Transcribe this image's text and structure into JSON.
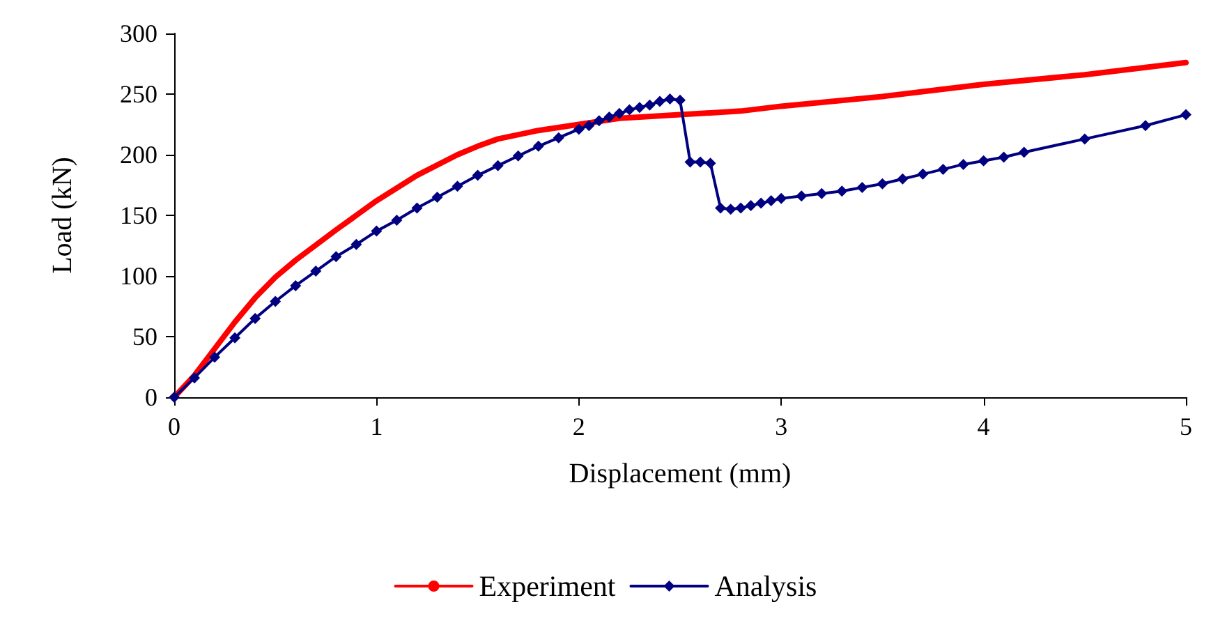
{
  "chart_data": {
    "type": "line",
    "xlabel": "Displacement (mm)",
    "ylabel": "Load (kN)",
    "xlim": [
      0,
      5
    ],
    "xticks": [
      0,
      1,
      2,
      3,
      4,
      5
    ],
    "ylim": [
      0,
      300
    ],
    "yticks": [
      0,
      50,
      100,
      150,
      200,
      250,
      300
    ],
    "grid": false,
    "legend": "bottom",
    "series": [
      {
        "name": "Experiment",
        "color": "#ff0000",
        "marker": "none",
        "x": [
          0,
          0.1,
          0.2,
          0.3,
          0.4,
          0.5,
          0.6,
          0.8,
          1.0,
          1.2,
          1.4,
          1.5,
          1.6,
          1.8,
          2.0,
          2.2,
          2.5,
          2.8,
          3.0,
          3.5,
          4.0,
          4.5,
          5.0
        ],
        "values": [
          0,
          18,
          40,
          62,
          82,
          99,
          113,
          138,
          162,
          183,
          200,
          207,
          213,
          220,
          225,
          230,
          233,
          236,
          240,
          248,
          258,
          266,
          276
        ]
      },
      {
        "name": "Analysis",
        "color": "#000080",
        "marker": "diamond",
        "x": [
          0,
          0.1,
          0.2,
          0.3,
          0.4,
          0.5,
          0.6,
          0.7,
          0.8,
          0.9,
          1.0,
          1.1,
          1.2,
          1.3,
          1.4,
          1.5,
          1.6,
          1.7,
          1.8,
          1.9,
          2.0,
          2.05,
          2.1,
          2.15,
          2.2,
          2.25,
          2.3,
          2.35,
          2.4,
          2.45,
          2.5,
          2.55,
          2.6,
          2.65,
          2.7,
          2.75,
          2.8,
          2.85,
          2.9,
          2.95,
          3.0,
          3.1,
          3.2,
          3.3,
          3.4,
          3.5,
          3.6,
          3.7,
          3.8,
          3.9,
          4.0,
          4.1,
          4.2,
          4.5,
          4.8,
          5.0
        ],
        "values": [
          0,
          16,
          33,
          49,
          65,
          79,
          92,
          104,
          116,
          126,
          137,
          146,
          156,
          165,
          174,
          183,
          191,
          199,
          207,
          214,
          221,
          224,
          228,
          231,
          234,
          237,
          239,
          241,
          244,
          246,
          245,
          194,
          194,
          193,
          156,
          155,
          156,
          158,
          160,
          162,
          164,
          166,
          168,
          170,
          173,
          176,
          180,
          184,
          188,
          192,
          195,
          198,
          202,
          213,
          224,
          233
        ]
      }
    ]
  }
}
